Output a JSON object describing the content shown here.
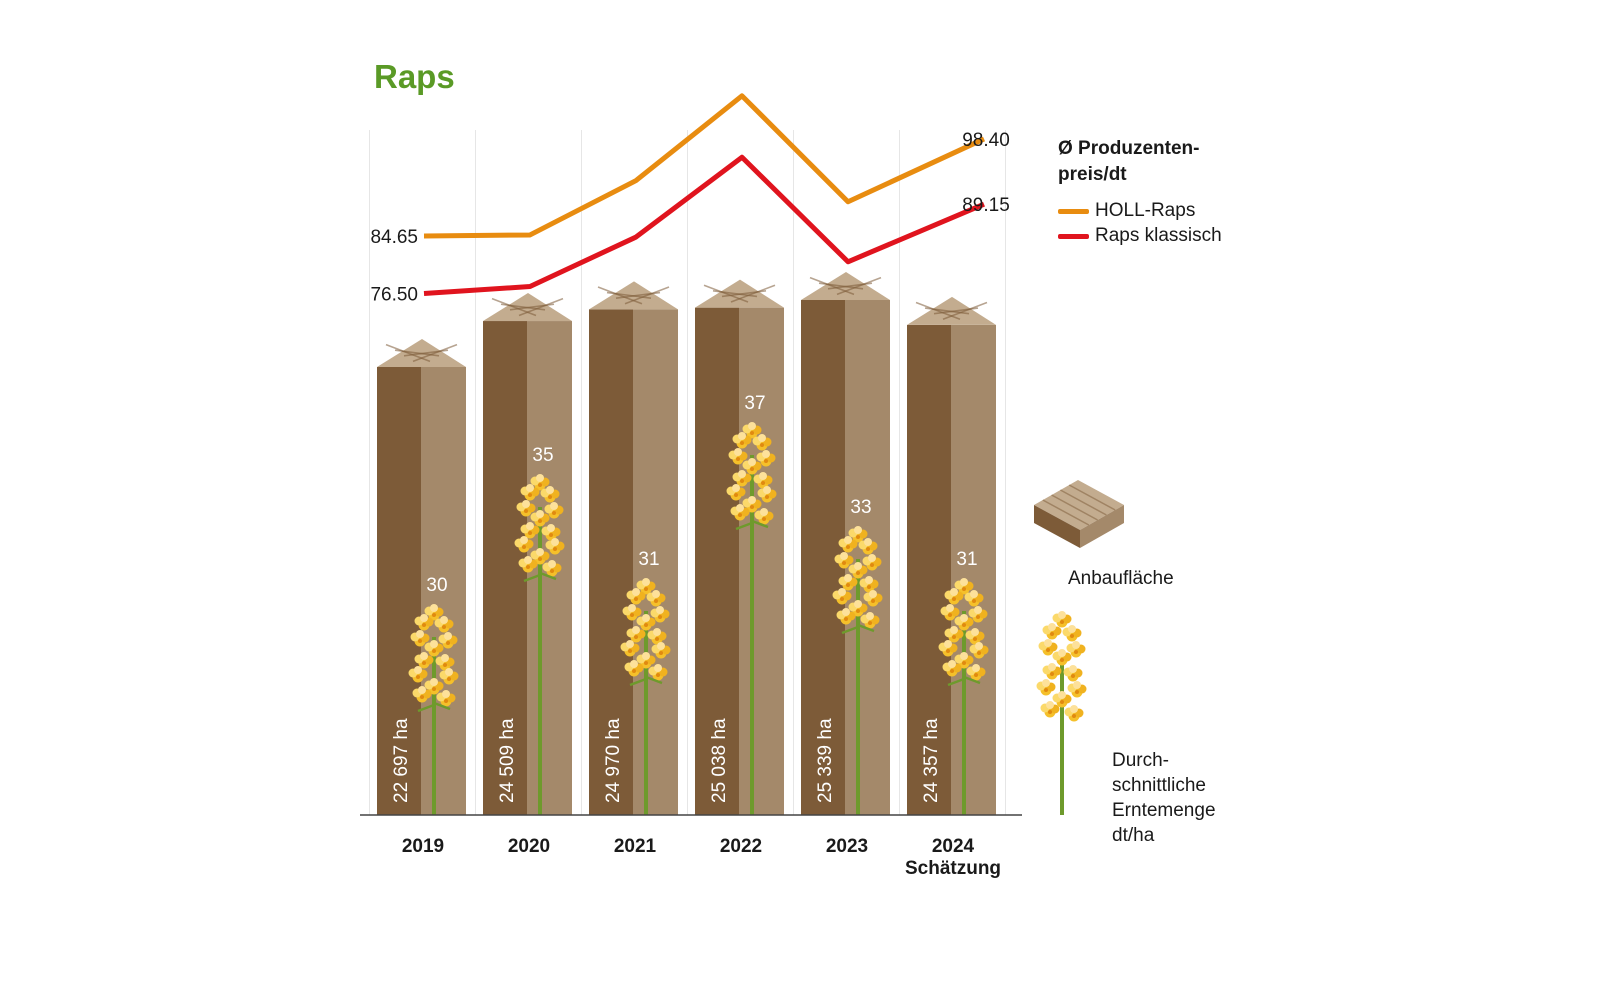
{
  "title": "Raps",
  "colors": {
    "title": "#5a9a26",
    "holl": "#e88c10",
    "klassisch": "#e0141e",
    "bar_front": "#7d5b38",
    "bar_side": "#a4896a",
    "bar_top": "#c3ac8f",
    "stem": "#6e9a2c",
    "flower": "#f5c02a"
  },
  "legend": {
    "price_title": "Ø Produzenten-preis/dt",
    "holl_label": "HOLL-Raps",
    "klassisch_label": "Raps klassisch",
    "area_label": "Anbaufläche",
    "yield_label_lines": [
      "Durch-",
      "schnittliche",
      "Erntemenge",
      "dt/ha"
    ]
  },
  "icons": {
    "area": "field-block-icon",
    "yield": "rapeseed-flower-icon"
  },
  "chart_data": {
    "type": "bar",
    "categories": [
      "2019",
      "2020",
      "2021",
      "2022",
      "2023",
      "2024"
    ],
    "category_sublabels": [
      "",
      "",
      "",
      "",
      "",
      "Schätzung"
    ],
    "series": [
      {
        "name": "Anbaufläche",
        "unit": "ha",
        "values": [
          22697,
          24509,
          24970,
          25038,
          25339,
          24357
        ],
        "labels": [
          "22 697 ha",
          "24 509 ha",
          "24 970 ha",
          "25 038 ha",
          "25 339 ha",
          "24 357 ha"
        ]
      },
      {
        "name": "Durchschnittliche Erntemenge dt/ha",
        "unit": "dt/ha",
        "values": [
          30,
          35,
          31,
          37,
          33,
          31
        ],
        "labels": [
          "30",
          "35",
          "31",
          "37",
          "33",
          "31"
        ]
      }
    ],
    "lines": [
      {
        "name": "HOLL-Raps",
        "values": [
          84.65,
          84.8,
          92.5,
          104.5,
          89.5,
          98.4
        ],
        "labels": [
          "84.65",
          "",
          "",
          "",
          "",
          "98.40"
        ]
      },
      {
        "name": "Raps klassisch",
        "values": [
          76.5,
          77.5,
          84.5,
          95.8,
          81.0,
          89.15
        ],
        "labels": [
          "76.50",
          "",
          "",
          "",
          "",
          "89.15"
        ]
      }
    ],
    "price_unit": "Ø Produzentenpreis/dt"
  }
}
